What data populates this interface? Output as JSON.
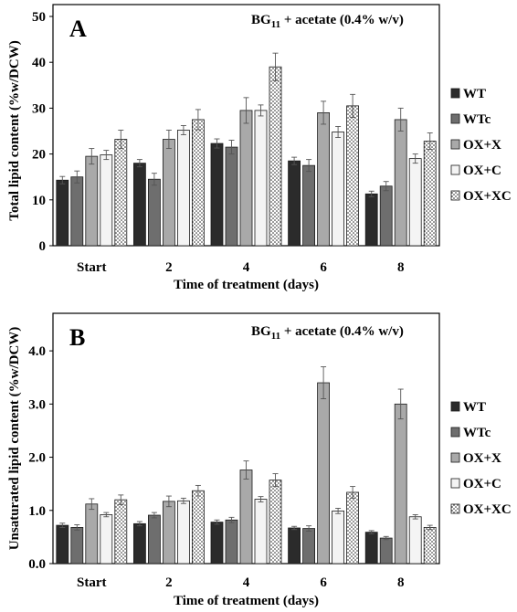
{
  "chart_data": [
    {
      "type": "bar",
      "panel_label": "A",
      "annotation": {
        "main": "BG",
        "sub": "11",
        "rest": " + acetate (0.4% w/v)"
      },
      "xlabel": "Time of treatment (days)",
      "ylabel": "Total lipid content (%w/DCW)",
      "ylim": [
        0,
        50
      ],
      "yticks": [
        "0",
        "10",
        "20",
        "30",
        "40",
        "50"
      ],
      "categories": [
        "Start",
        "2",
        "4",
        "6",
        "8"
      ],
      "series": [
        {
          "name": "WT",
          "values": [
            14.3,
            18.0,
            22.3,
            18.5,
            11.3
          ],
          "errors": [
            0.8,
            0.8,
            1.0,
            0.8,
            0.6
          ]
        },
        {
          "name": "WTc",
          "values": [
            15.0,
            14.5,
            21.5,
            17.5,
            13.0
          ],
          "errors": [
            1.3,
            1.3,
            1.5,
            1.3,
            1.0
          ]
        },
        {
          "name": "OX+X",
          "values": [
            19.5,
            23.2,
            29.5,
            29.0,
            27.5
          ],
          "errors": [
            1.7,
            2.0,
            2.8,
            2.5,
            2.5
          ]
        },
        {
          "name": "OX+C",
          "values": [
            19.8,
            25.2,
            29.5,
            24.8,
            19.0
          ],
          "errors": [
            1.0,
            1.0,
            1.2,
            1.2,
            1.0
          ]
        },
        {
          "name": "OX+XC",
          "values": [
            23.2,
            27.5,
            39.0,
            30.5,
            22.8
          ],
          "errors": [
            2.0,
            2.2,
            3.0,
            2.5,
            1.8
          ]
        }
      ]
    },
    {
      "type": "bar",
      "panel_label": "B",
      "annotation": {
        "main": "BG",
        "sub": "11",
        "rest": " + acetate (0.4% w/v)"
      },
      "xlabel": "Time of treatment (days)",
      "ylabel": "Unsaturated lipid content (%w/DCW)",
      "ylim": [
        0,
        4.5
      ],
      "yticks": [
        "0.0",
        "1.0",
        "2.0",
        "3.0",
        "4.0"
      ],
      "categories": [
        "Start",
        "2",
        "4",
        "6",
        "8"
      ],
      "series": [
        {
          "name": "WT",
          "values": [
            0.72,
            0.75,
            0.78,
            0.67,
            0.59
          ],
          "errors": [
            0.04,
            0.04,
            0.04,
            0.03,
            0.03
          ]
        },
        {
          "name": "WTc",
          "values": [
            0.68,
            0.91,
            0.82,
            0.66,
            0.48
          ],
          "errors": [
            0.05,
            0.05,
            0.05,
            0.05,
            0.03
          ]
        },
        {
          "name": "OX+X",
          "values": [
            1.12,
            1.17,
            1.76,
            3.4,
            3.0
          ],
          "errors": [
            0.1,
            0.1,
            0.17,
            0.3,
            0.28
          ]
        },
        {
          "name": "OX+C",
          "values": [
            0.92,
            1.18,
            1.21,
            0.99,
            0.88
          ],
          "errors": [
            0.04,
            0.05,
            0.05,
            0.05,
            0.04
          ]
        },
        {
          "name": "OX+XC",
          "values": [
            1.2,
            1.37,
            1.57,
            1.34,
            0.68
          ],
          "errors": [
            0.09,
            0.1,
            0.12,
            0.11,
            0.04
          ]
        }
      ]
    }
  ],
  "series_styles": [
    {
      "fill": "#2b2b2b",
      "pattern": "none"
    },
    {
      "fill": "#6e6e6e",
      "pattern": "none"
    },
    {
      "fill": "#a9a9a9",
      "pattern": "none"
    },
    {
      "fill": "#f4f4f4",
      "pattern": "none"
    },
    {
      "fill": "#ffffff",
      "pattern": "dots"
    }
  ]
}
